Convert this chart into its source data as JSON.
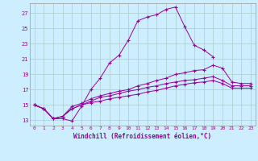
{
  "xlabel": "Windchill (Refroidissement éolien,°C)",
  "bg_color": "#cceeff",
  "line_color": "#990099",
  "grid_color": "#aacccc",
  "x_ticks": [
    0,
    1,
    2,
    3,
    4,
    5,
    6,
    7,
    8,
    9,
    10,
    11,
    12,
    13,
    14,
    15,
    16,
    17,
    18,
    19,
    20,
    21,
    22,
    23
  ],
  "y_ticks": [
    13,
    15,
    17,
    19,
    21,
    23,
    25,
    27
  ],
  "xlim": [
    -0.5,
    23.5
  ],
  "ylim": [
    12.3,
    28.3
  ],
  "series": [
    [
      15.0,
      14.5,
      13.2,
      13.2,
      12.9,
      14.8,
      17.0,
      18.5,
      20.5,
      21.5,
      23.5,
      26.0,
      26.5,
      26.8,
      27.5,
      27.8,
      25.2,
      22.8,
      22.2,
      21.3,
      null,
      null,
      null,
      null
    ],
    [
      15.0,
      14.5,
      13.2,
      13.5,
      14.8,
      15.2,
      15.8,
      16.2,
      16.5,
      16.8,
      17.0,
      17.5,
      17.8,
      18.2,
      18.5,
      19.0,
      19.2,
      19.5,
      19.6,
      20.2,
      19.8,
      18.0,
      17.8,
      17.8
    ],
    [
      15.0,
      14.5,
      13.2,
      13.5,
      14.5,
      15.0,
      15.5,
      16.0,
      16.2,
      16.5,
      16.8,
      17.0,
      17.3,
      17.5,
      17.8,
      18.0,
      18.2,
      18.3,
      18.5,
      18.7,
      18.2,
      17.5,
      17.5,
      17.5
    ],
    [
      15.0,
      14.5,
      13.2,
      13.5,
      14.5,
      15.0,
      15.3,
      15.5,
      15.8,
      16.0,
      16.2,
      16.4,
      16.7,
      16.9,
      17.2,
      17.5,
      17.7,
      17.9,
      18.0,
      18.2,
      17.8,
      17.2,
      17.2,
      17.2
    ]
  ]
}
